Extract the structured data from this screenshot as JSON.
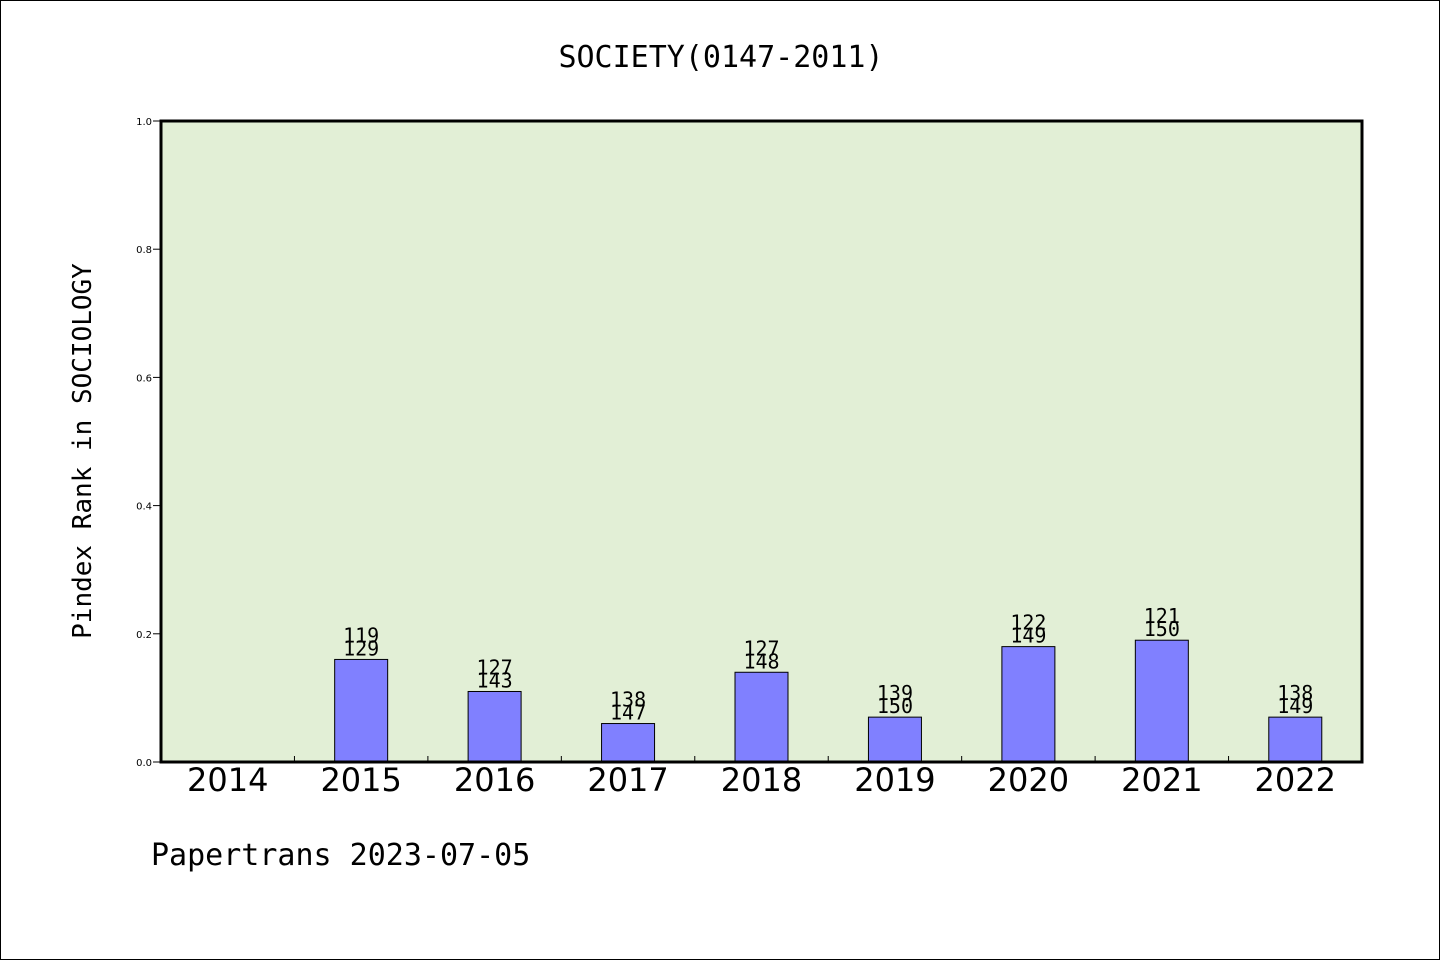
{
  "chart_data": {
    "type": "bar",
    "title": "SOCIETY(0147-2011)",
    "xlabel": "",
    "ylabel": "Pindex Rank in SOCIOLOGY",
    "ylim": [
      0,
      1.0
    ],
    "yticks": [
      "0.0",
      "0.2",
      "0.4",
      "0.6",
      "0.8",
      "1.0"
    ],
    "grid": false,
    "categories": [
      "2014",
      "2015",
      "2016",
      "2017",
      "2018",
      "2019",
      "2020",
      "2021",
      "2022"
    ],
    "values": [
      null,
      0.16,
      0.11,
      0.06,
      0.14,
      0.07,
      0.18,
      0.19,
      0.07
    ],
    "label_top": [
      "",
      "119",
      "127",
      "138",
      "127",
      "139",
      "122",
      "121",
      "138"
    ],
    "label_bottom": [
      "",
      "129",
      "143",
      "147",
      "148",
      "150",
      "149",
      "150",
      "149"
    ],
    "footer": "Papertrans 2023-07-05",
    "colors": {
      "plot_background": "#e2efd6",
      "bar_fill": "#8080ff",
      "axis": "#000000"
    }
  }
}
